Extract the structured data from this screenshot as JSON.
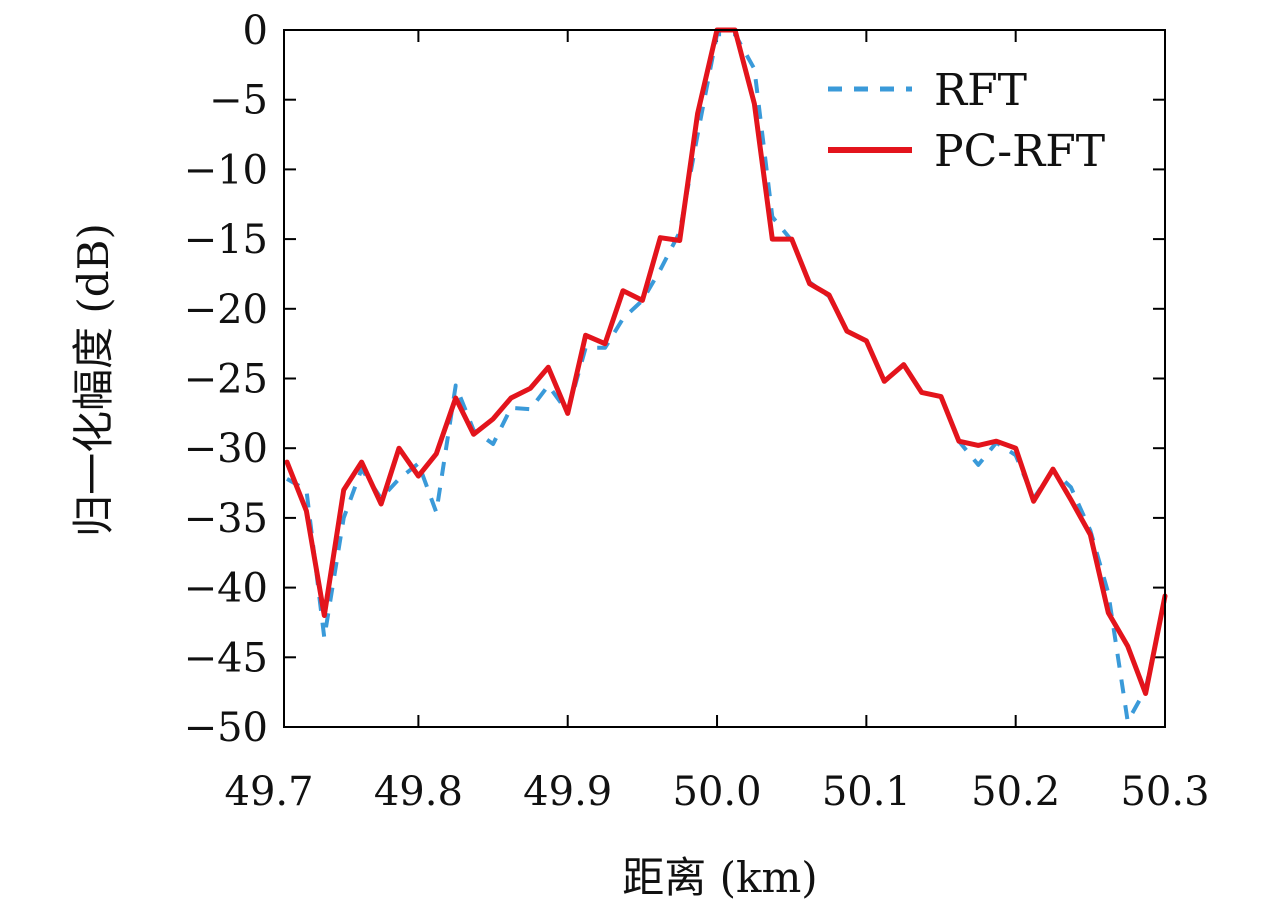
{
  "chart_data": {
    "type": "line",
    "xlabel": "距离 (km)",
    "ylabel": "归一化幅度 (dB)",
    "xlim": [
      49.71,
      50.3
    ],
    "ylim": [
      -50,
      0
    ],
    "xticks": [
      49.7,
      49.8,
      49.9,
      50.0,
      50.1,
      50.2,
      50.3
    ],
    "xtick_labels": [
      "49.7",
      "49.8",
      "49.9",
      "50.0",
      "50.1",
      "50.2",
      "50.3"
    ],
    "yticks": [
      0,
      -5,
      -10,
      -15,
      -20,
      -25,
      -30,
      -35,
      -40,
      -45,
      -50
    ],
    "ytick_labels": [
      "0",
      "−5",
      "−10",
      "−15",
      "−20",
      "−25",
      "−30",
      "−35",
      "−40",
      "−45",
      "−50"
    ],
    "grid": false,
    "legend_position": "top-right",
    "series": [
      {
        "name": "RFT",
        "color": "#3a9ad9",
        "style": "dashed",
        "x": [
          49.712,
          49.725,
          49.737,
          49.75,
          49.762,
          49.775,
          49.787,
          49.8,
          49.812,
          49.825,
          49.837,
          49.85,
          49.862,
          49.875,
          49.887,
          49.9,
          49.912,
          49.925,
          49.937,
          49.95,
          49.962,
          49.975,
          49.987,
          50.0,
          50.012,
          50.025,
          50.037,
          50.05,
          50.062,
          50.075,
          50.087,
          50.1,
          50.112,
          50.125,
          50.137,
          50.15,
          50.162,
          50.175,
          50.187,
          50.2,
          50.212,
          50.225,
          50.237,
          50.25,
          50.262,
          50.275,
          50.287,
          50.3
        ],
        "y": [
          -32.2,
          -33,
          -43.6,
          -35,
          -31.5,
          -33.6,
          -32.2,
          -31.1,
          -34.6,
          -25.5,
          -28.7,
          -29.7,
          -27.1,
          -27.2,
          -25.5,
          -27.4,
          -22.8,
          -22.8,
          -20.7,
          -19.4,
          -17.2,
          -14.5,
          -7.5,
          -0.3,
          -0.3,
          -2.8,
          -13.4,
          -15.1,
          -18.1,
          -19.1,
          -21.6,
          -22.3,
          -25.2,
          -24,
          -26,
          -26.3,
          -29.5,
          -31.2,
          -29.6,
          -30.5,
          -33.6,
          -31.6,
          -32.8,
          -35.9,
          -40.4,
          -49.6,
          -47.3,
          -40.8
        ]
      },
      {
        "name": "PC-RFT",
        "color": "#e3141c",
        "style": "solid",
        "x": [
          49.712,
          49.725,
          49.737,
          49.75,
          49.762,
          49.775,
          49.787,
          49.8,
          49.812,
          49.825,
          49.837,
          49.85,
          49.862,
          49.875,
          49.887,
          49.9,
          49.912,
          49.925,
          49.937,
          49.95,
          49.962,
          49.975,
          49.987,
          50.0,
          50.012,
          50.025,
          50.037,
          50.05,
          50.062,
          50.075,
          50.087,
          50.1,
          50.112,
          50.125,
          50.137,
          50.15,
          50.162,
          50.175,
          50.187,
          50.2,
          50.212,
          50.225,
          50.237,
          50.25,
          50.262,
          50.275,
          50.287,
          50.3
        ],
        "y": [
          -31,
          -34.5,
          -42,
          -33,
          -31,
          -34,
          -30,
          -32,
          -30.4,
          -26.4,
          -29,
          -27.9,
          -26.4,
          -25.7,
          -24.2,
          -27.5,
          -21.9,
          -22.5,
          -18.7,
          -19.4,
          -14.9,
          -15.1,
          -6,
          0,
          0,
          -5.3,
          -15,
          -15,
          -18.2,
          -19,
          -21.6,
          -22.3,
          -25.2,
          -24,
          -26,
          -26.3,
          -29.5,
          -29.8,
          -29.5,
          -30,
          -33.8,
          -31.5,
          -33.7,
          -36.2,
          -41.8,
          -44.2,
          -47.6,
          -40.6
        ]
      }
    ]
  }
}
